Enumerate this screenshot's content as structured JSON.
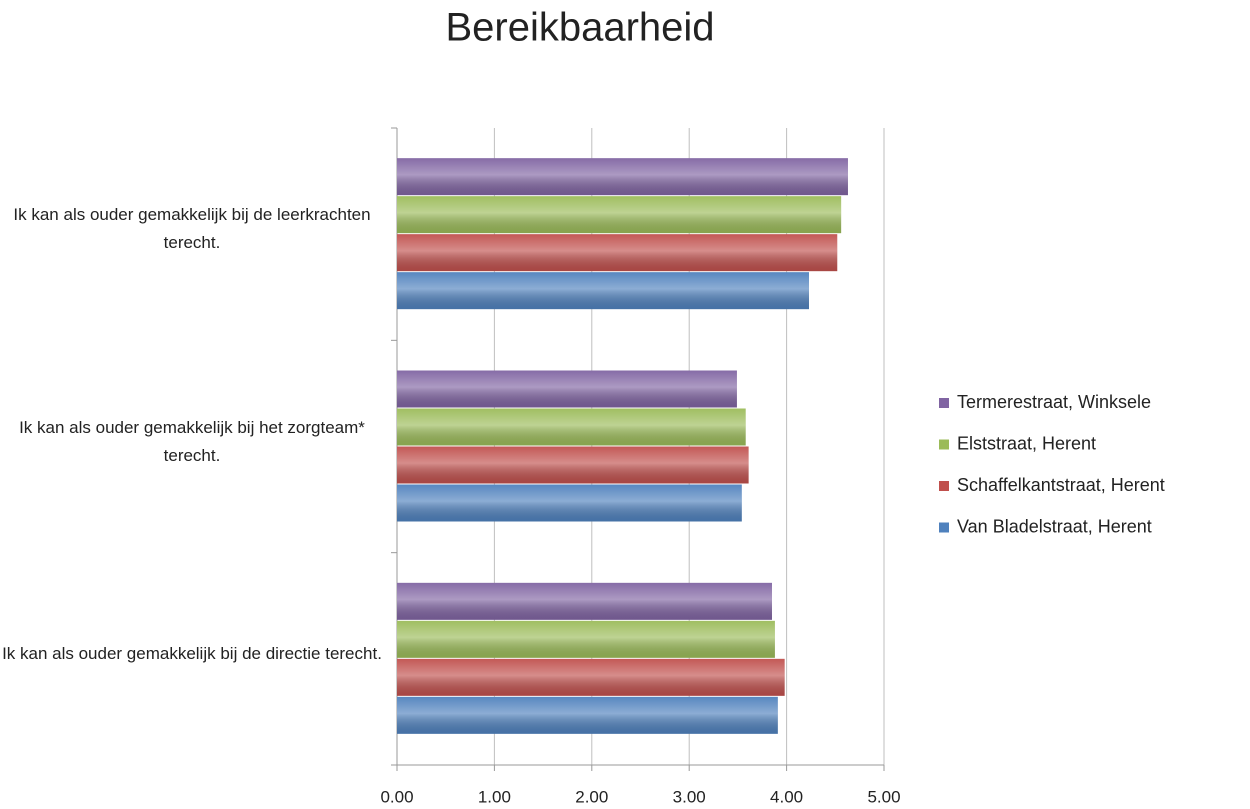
{
  "chart_data": {
    "type": "hbar",
    "title": "Bereikbaarheid",
    "categories": [
      "Ik kan als ouder gemakkelijk bij de leerkrachten terecht.",
      "Ik kan als ouder gemakkelijk bij het zorgteam* terecht.",
      "Ik kan als ouder gemakkelijk bij de directie terecht."
    ],
    "series": [
      {
        "name": "Termerestraat, Winksele",
        "color": "#8064a2",
        "values": [
          4.63,
          3.49,
          3.85
        ]
      },
      {
        "name": "Elststraat, Herent",
        "color": "#9bbb59",
        "values": [
          4.56,
          3.58,
          3.88
        ]
      },
      {
        "name": "Schaffelkantstraat, Herent",
        "color": "#c0504d",
        "values": [
          4.52,
          3.61,
          3.98
        ]
      },
      {
        "name": "Van Bladelstraat, Herent",
        "color": "#4f81bd",
        "values": [
          4.23,
          3.54,
          3.91
        ]
      }
    ],
    "xlim": [
      0,
      5
    ],
    "xticks": [
      {
        "value": 0,
        "label": "0.00"
      },
      {
        "value": 1,
        "label": "1.00"
      },
      {
        "value": 2,
        "label": "2.00"
      },
      {
        "value": 3,
        "label": "3.00"
      },
      {
        "value": 4,
        "label": "4.00"
      },
      {
        "value": 5,
        "label": "5.00"
      }
    ],
    "grid": true,
    "legend": "right"
  }
}
